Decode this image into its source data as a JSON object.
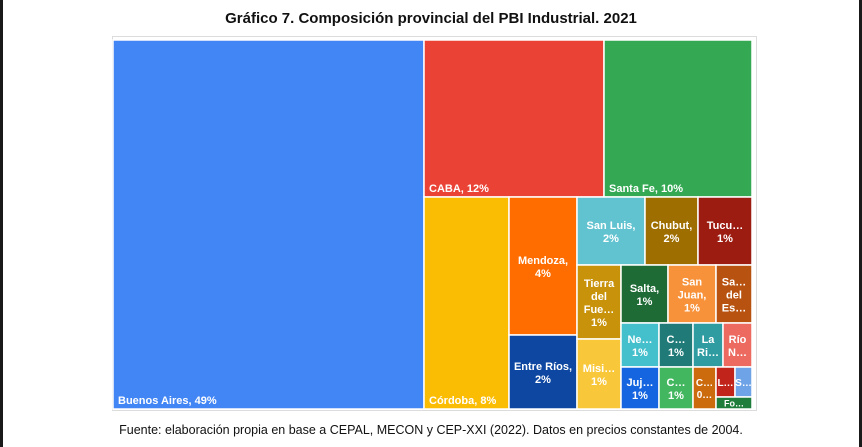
{
  "chart_data": {
    "type": "treemap",
    "title": "Gráfico 7. Composición provincial del PBI Industrial. 2021",
    "caption": "Fuente: elaboración propia en base a CEPAL, MECON y CEP-XXI (2022). Datos en precios constantes de 2004.",
    "tiles": [
      {
        "name": "Buenos Aires",
        "value": 49,
        "label": [
          "Buenos Aires, 49%"
        ],
        "color": "#4285f4"
      },
      {
        "name": "CABA",
        "value": 12,
        "label": [
          "CABA, 12%"
        ],
        "color": "#ea4335"
      },
      {
        "name": "Santa Fe",
        "value": 10,
        "label": [
          "Santa Fe, 10%"
        ],
        "color": "#34a853"
      },
      {
        "name": "Córdoba",
        "value": 8,
        "label": [
          "Córdoba, 8%"
        ],
        "color": "#fbbc04"
      },
      {
        "name": "Mendoza",
        "value": 4,
        "label": [
          "Mendoza,",
          "4%"
        ],
        "color": "#ff6d01"
      },
      {
        "name": "Entre Ríos",
        "value": 2,
        "label": [
          "Entre Ríos,",
          "2%"
        ],
        "color": "#0d47a1"
      },
      {
        "name": "San Luis",
        "value": 2,
        "label": [
          "San Luis,",
          "2%"
        ],
        "color": "#62c3d0"
      },
      {
        "name": "Chubut",
        "value": 2,
        "label": [
          "Chubut,",
          "2%"
        ],
        "color": "#9e6e00"
      },
      {
        "name": "Tucumán",
        "value": 1,
        "label": [
          "Tucu…",
          "1%"
        ],
        "color": "#9c1c12"
      },
      {
        "name": "Tierra del Fuego",
        "value": 1,
        "label": [
          "Tierra",
          "del",
          "Fue…",
          "1%"
        ],
        "color": "#c8920a"
      },
      {
        "name": "Salta",
        "value": 1,
        "label": [
          "Salta,",
          "1%"
        ],
        "color": "#1e6b35"
      },
      {
        "name": "San Juan",
        "value": 1,
        "label": [
          "San",
          "Juan,",
          "1%"
        ],
        "color": "#f7923a"
      },
      {
        "name": "Santiago del Estero",
        "value": 1,
        "label": [
          "Sa…",
          "del",
          "Es…"
        ],
        "color": "#b85210"
      },
      {
        "name": "Misiones",
        "value": 1,
        "label": [
          "Misi…",
          "1%"
        ],
        "color": "#f9c83a"
      },
      {
        "name": "Neuquén",
        "value": 1,
        "label": [
          "Ne…",
          "1%"
        ],
        "color": "#44bfcc"
      },
      {
        "name": "Catamarca",
        "value": 1,
        "label": [
          "C…",
          "1%"
        ],
        "color": "#1f7a78"
      },
      {
        "name": "La Rioja",
        "value": 1,
        "label": [
          "La",
          "Ri…"
        ],
        "color": "#2f9ca2"
      },
      {
        "name": "Río Negro",
        "value": 1,
        "label": [
          "Río",
          "N…"
        ],
        "color": "#ec6a60"
      },
      {
        "name": "Jujuy",
        "value": 1,
        "label": [
          "Juj…",
          "1%"
        ],
        "color": "#1565e0"
      },
      {
        "name": "Corrientes",
        "value": 1,
        "label": [
          "C…",
          "1%"
        ],
        "color": "#43b760"
      },
      {
        "name": "Chaco",
        "value": 0,
        "label": [
          "C…",
          "0…"
        ],
        "color": "#cc6a0e"
      },
      {
        "name": "La Pampa",
        "value": 0,
        "label": [
          "L…"
        ],
        "color": "#c0241a"
      },
      {
        "name": "Santa Cruz",
        "value": 0,
        "label": [
          "S…"
        ],
        "color": "#6fa3e8"
      },
      {
        "name": "Formosa",
        "value": 0,
        "label": [
          "Fo…"
        ],
        "color": "#1e7d3a"
      }
    ]
  }
}
